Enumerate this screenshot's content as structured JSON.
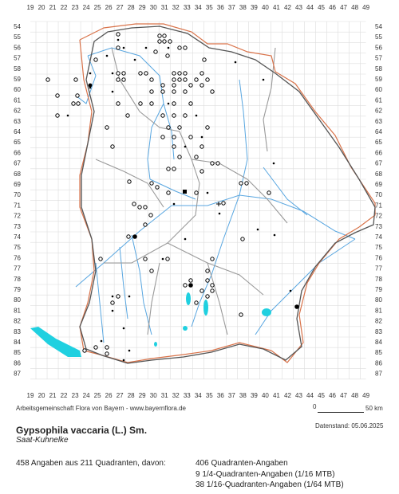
{
  "grid": {
    "x_labels": [
      "19",
      "20",
      "21",
      "22",
      "23",
      "24",
      "25",
      "26",
      "27",
      "28",
      "29",
      "30",
      "31",
      "32",
      "33",
      "34",
      "35",
      "36",
      "37",
      "38",
      "39",
      "40",
      "41",
      "42",
      "43",
      "44",
      "45",
      "46",
      "47",
      "48",
      "49"
    ],
    "y_labels": [
      "54",
      "55",
      "56",
      "57",
      "58",
      "59",
      "60",
      "61",
      "62",
      "63",
      "64",
      "65",
      "66",
      "67",
      "68",
      "69",
      "70",
      "71",
      "72",
      "73",
      "74",
      "75",
      "76",
      "77",
      "78",
      "79",
      "80",
      "81",
      "82",
      "83",
      "84",
      "85",
      "86",
      "87"
    ]
  },
  "legend": {
    "credit": "Arbeitsgemeinschaft Flora von Bayern - www.bayernflora.de",
    "scale_zero": "0",
    "scale_end": "50 km",
    "date": "Datenstand: 05.06.2025"
  },
  "species": {
    "name": "Gypsophila vaccaria (L.) Sm.",
    "common": "Saat-Kuhnelke"
  },
  "summary": {
    "total": "458 Angaben aus 211 Quadranten, davon:",
    "quadrant": "406 Quadranten-Angaben",
    "quarter": "9 1/4-Quadranten-Angaben (1/16 MTB)",
    "sixteenth": "38 1/16-Quadranten-Angaben (1/64 MTB)"
  },
  "colors": {
    "border_state": "#555555",
    "border_region": "#d9734a",
    "border_district": "#9a9a9a",
    "rivers": "#58a6e0",
    "lakes": "#1fd0e0",
    "grid": "#dddddd"
  }
}
